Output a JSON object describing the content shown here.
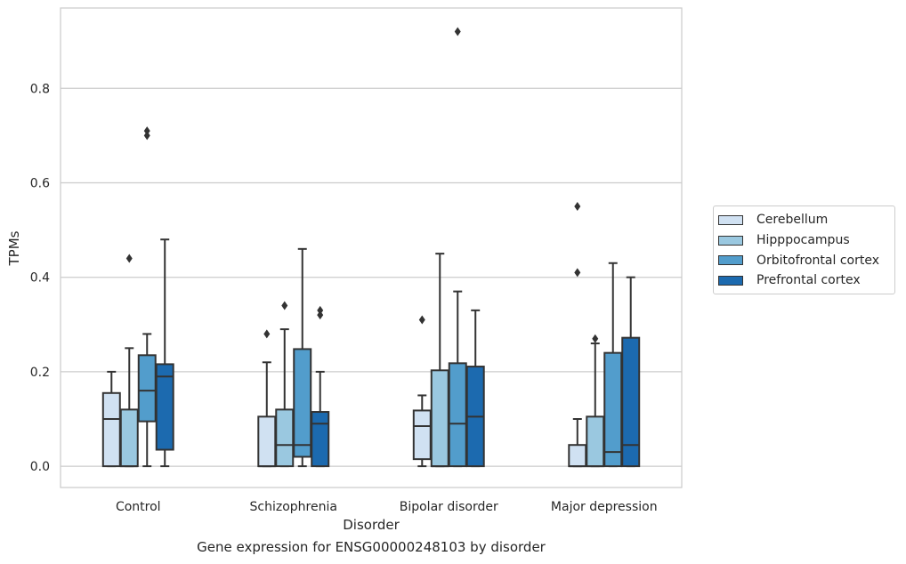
{
  "chart_data": {
    "type": "box",
    "title": "",
    "caption": "Gene expression for ENSG00000248103 by disorder",
    "xlabel": "Disorder",
    "ylabel": "TPMs",
    "ylim": [
      -0.045,
      0.97
    ],
    "yticks": [
      0.0,
      0.2,
      0.4,
      0.6,
      0.8
    ],
    "ytick_labels": [
      "0.0",
      "0.2",
      "0.4",
      "0.6",
      "0.8"
    ],
    "grid": "horizontal",
    "legend_position": "right",
    "categories": [
      "Control",
      "Schizophrenia",
      "Bipolar disorder",
      "Major depression"
    ],
    "series": [
      {
        "name": "Cerebellum",
        "color": "#d0e1f2",
        "boxes": [
          {
            "whisker_low": 0.0,
            "q1": 0.0,
            "median": 0.1,
            "q3": 0.155,
            "whisker_high": 0.2,
            "outliers": []
          },
          {
            "whisker_low": 0.0,
            "q1": 0.0,
            "median": 0.0,
            "q3": 0.105,
            "whisker_high": 0.22,
            "outliers": [
              0.28
            ]
          },
          {
            "whisker_low": 0.0,
            "q1": 0.015,
            "median": 0.085,
            "q3": 0.118,
            "whisker_high": 0.15,
            "outliers": [
              0.31
            ]
          },
          {
            "whisker_low": 0.0,
            "q1": 0.0,
            "median": 0.0,
            "q3": 0.045,
            "whisker_high": 0.1,
            "outliers": [
              0.41,
              0.55
            ]
          }
        ]
      },
      {
        "name": "Hipppocampus",
        "color": "#9ac8e0",
        "boxes": [
          {
            "whisker_low": 0.0,
            "q1": 0.0,
            "median": 0.0,
            "q3": 0.12,
            "whisker_high": 0.25,
            "outliers": [
              0.44
            ]
          },
          {
            "whisker_low": 0.0,
            "q1": 0.0,
            "median": 0.045,
            "q3": 0.12,
            "whisker_high": 0.29,
            "outliers": [
              0.34
            ]
          },
          {
            "whisker_low": 0.0,
            "q1": 0.0,
            "median": 0.0,
            "q3": 0.203,
            "whisker_high": 0.45,
            "outliers": []
          },
          {
            "whisker_low": 0.0,
            "q1": 0.0,
            "median": 0.0,
            "q3": 0.105,
            "whisker_high": 0.26,
            "outliers": [
              0.27
            ]
          }
        ]
      },
      {
        "name": "Orbitofrontal cortex",
        "color": "#529dcc",
        "boxes": [
          {
            "whisker_low": 0.0,
            "q1": 0.095,
            "median": 0.16,
            "q3": 0.235,
            "whisker_high": 0.28,
            "outliers": [
              0.7,
              0.71
            ]
          },
          {
            "whisker_low": 0.0,
            "q1": 0.02,
            "median": 0.045,
            "q3": 0.248,
            "whisker_high": 0.46,
            "outliers": []
          },
          {
            "whisker_low": 0.0,
            "q1": 0.0,
            "median": 0.09,
            "q3": 0.218,
            "whisker_high": 0.37,
            "outliers": [
              0.92
            ]
          },
          {
            "whisker_low": 0.0,
            "q1": 0.0,
            "median": 0.03,
            "q3": 0.24,
            "whisker_high": 0.43,
            "outliers": []
          }
        ]
      },
      {
        "name": "Prefrontal cortex",
        "color": "#1c6aaf",
        "boxes": [
          {
            "whisker_low": 0.0,
            "q1": 0.035,
            "median": 0.19,
            "q3": 0.216,
            "whisker_high": 0.48,
            "outliers": []
          },
          {
            "whisker_low": 0.0,
            "q1": 0.0,
            "median": 0.09,
            "q3": 0.115,
            "whisker_high": 0.2,
            "outliers": [
              0.32,
              0.33
            ]
          },
          {
            "whisker_low": 0.0,
            "q1": 0.0,
            "median": 0.105,
            "q3": 0.211,
            "whisker_high": 0.33,
            "outliers": []
          },
          {
            "whisker_low": 0.0,
            "q1": 0.0,
            "median": 0.045,
            "q3": 0.272,
            "whisker_high": 0.4,
            "outliers": []
          }
        ]
      }
    ]
  }
}
